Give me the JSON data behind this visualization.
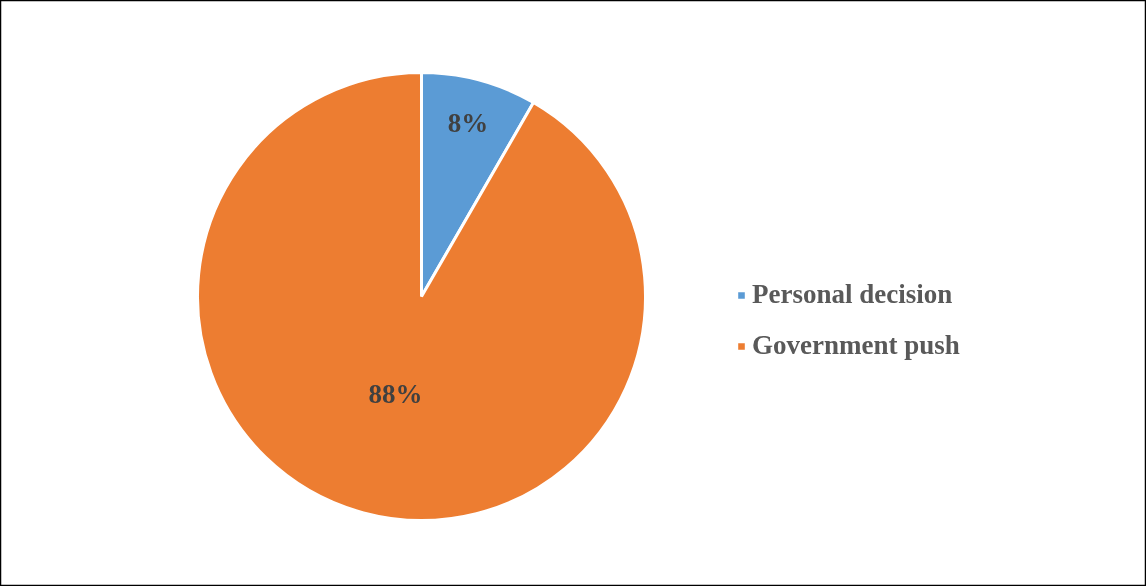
{
  "chart_data": {
    "type": "pie",
    "categories": [
      "Personal decision",
      "Government push"
    ],
    "values": [
      8,
      88
    ],
    "colors": [
      "#5b9bd5",
      "#ed7d31"
    ],
    "value_labels": [
      "8%",
      "88%"
    ],
    "legend": "right"
  }
}
